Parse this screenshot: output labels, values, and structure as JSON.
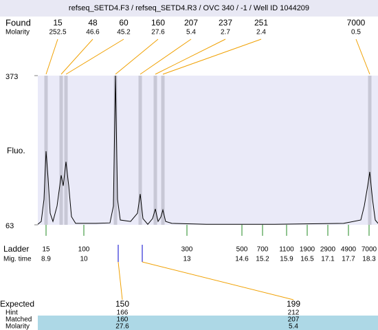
{
  "chart_data": {
    "type": "electropherogram",
    "title": "refseq_SETD4.F3 / refseq_SETD4.R3 / OVC 340 / -1 / Well ID 1044209",
    "ylabel": "Fluo.",
    "ylim": [
      63,
      373
    ],
    "yticks": [
      63,
      373
    ],
    "xlim": [
      8.66,
      18.56
    ],
    "trace": {
      "x": [
        8.66,
        8.76,
        8.84,
        8.9,
        8.96,
        9.02,
        9.1,
        9.22,
        9.34,
        9.4,
        9.48,
        9.56,
        9.64,
        9.76,
        10.36,
        10.76,
        10.86,
        10.92,
        10.98,
        11.06,
        11.36,
        11.56,
        11.64,
        11.72,
        11.86,
        12.0,
        12.08,
        12.16,
        12.24,
        12.3,
        12.38,
        12.56,
        13.56,
        15.56,
        17.56,
        18.06,
        18.16,
        18.26,
        18.32,
        18.4,
        18.48,
        18.56
      ],
      "values": [
        64,
        70,
        116,
        216,
        159,
        87,
        70,
        102,
        166,
        144,
        194,
        144,
        80,
        66,
        66,
        67,
        102,
        373,
        116,
        73,
        70,
        87,
        127,
        76,
        64,
        76,
        96,
        70,
        79,
        94,
        70,
        66,
        64,
        64,
        66,
        73,
        102,
        144,
        173,
        116,
        73,
        66
      ]
    },
    "found_label": "Found",
    "found_molarity_label": "Molarity",
    "found_sizes": [
      15,
      48,
      60,
      160,
      207,
      237,
      251,
      7000
    ],
    "found_molarity": [
      252.5,
      46.6,
      45.2,
      27.6,
      5.4,
      2.7,
      2.4,
      0.5
    ],
    "found_times": [
      8.9,
      9.34,
      9.48,
      10.92,
      11.64,
      12.08,
      12.3,
      18.32
    ],
    "ladder_label": "Ladder",
    "mig_time_label": "Mig. time",
    "ladder_sizes": [
      15,
      100,
      300,
      500,
      700,
      1100,
      1900,
      2900,
      4900,
      7000
    ],
    "ladder_times": [
      8.9,
      10,
      13,
      14.6,
      15.2,
      15.9,
      16.5,
      17.1,
      17.7,
      18.3
    ],
    "table": {
      "row_labels": [
        "Expected",
        "Hint",
        "Matched",
        "Molarity"
      ],
      "expected": [
        150,
        199
      ],
      "hint": [
        166,
        212
      ],
      "matched": [
        160,
        207
      ],
      "molarity": [
        27.6,
        5.4
      ],
      "expected_times": [
        11.0,
        11.7
      ]
    }
  }
}
